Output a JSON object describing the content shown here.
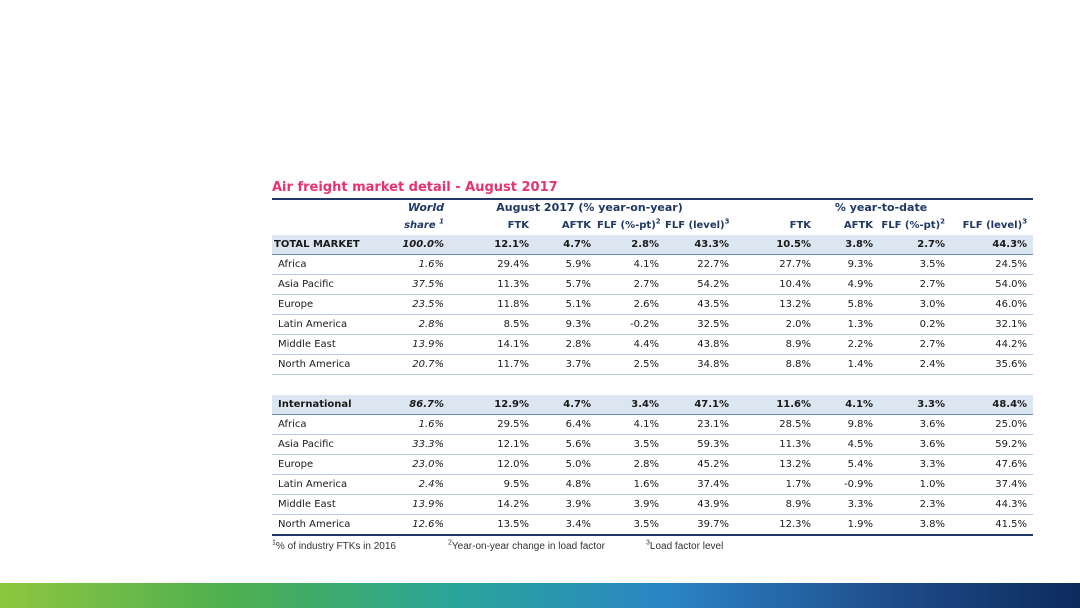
{
  "title": "Air freight market detail - August 2017",
  "header": {
    "world_share_line1": "World",
    "world_share_line2": "share",
    "world_share_sup": "1",
    "group1": "August 2017 (% year-on-year)",
    "group2": "% year-to-date",
    "cols": [
      "FTK",
      "AFTK",
      "FLF (%-pt)",
      "FLF (level)",
      "FTK",
      "AFTK",
      "FLF (%-pt)",
      "FLF (level)"
    ],
    "col_sups": [
      "",
      "",
      "2",
      "3",
      "",
      "",
      "2",
      "3"
    ]
  },
  "rows": [
    {
      "label": "TOTAL MARKET",
      "ws": "100.0%",
      "v": [
        "12.1%",
        "4.7%",
        "2.8%",
        "43.3%",
        "10.5%",
        "3.8%",
        "2.7%",
        "44.3%"
      ]
    },
    {
      "label": "Africa",
      "ws": "1.6%",
      "v": [
        "29.4%",
        "5.9%",
        "4.1%",
        "22.7%",
        "27.7%",
        "9.3%",
        "3.5%",
        "24.5%"
      ]
    },
    {
      "label": "Asia Pacific",
      "ws": "37.5%",
      "v": [
        "11.3%",
        "5.7%",
        "2.7%",
        "54.2%",
        "10.4%",
        "4.9%",
        "2.7%",
        "54.0%"
      ]
    },
    {
      "label": "Europe",
      "ws": "23.5%",
      "v": [
        "11.8%",
        "5.1%",
        "2.6%",
        "43.5%",
        "13.2%",
        "5.8%",
        "3.0%",
        "46.0%"
      ]
    },
    {
      "label": "Latin America",
      "ws": "2.8%",
      "v": [
        "8.5%",
        "9.3%",
        "-0.2%",
        "32.5%",
        "2.0%",
        "1.3%",
        "0.2%",
        "32.1%"
      ]
    },
    {
      "label": "Middle East",
      "ws": "13.9%",
      "v": [
        "14.1%",
        "2.8%",
        "4.4%",
        "43.8%",
        "8.9%",
        "2.2%",
        "2.7%",
        "44.2%"
      ]
    },
    {
      "label": "North America",
      "ws": "20.7%",
      "v": [
        "11.7%",
        "3.7%",
        "2.5%",
        "34.8%",
        "8.8%",
        "1.4%",
        "2.4%",
        "35.6%"
      ]
    },
    {
      "label": "International",
      "ws": "86.7%",
      "v": [
        "12.9%",
        "4.7%",
        "3.4%",
        "47.1%",
        "11.6%",
        "4.1%",
        "3.3%",
        "48.4%"
      ]
    },
    {
      "label": "Africa",
      "ws": "1.6%",
      "v": [
        "29.5%",
        "6.4%",
        "4.1%",
        "23.1%",
        "28.5%",
        "9.8%",
        "3.6%",
        "25.0%"
      ]
    },
    {
      "label": "Asia Pacific",
      "ws": "33.3%",
      "v": [
        "12.1%",
        "5.6%",
        "3.5%",
        "59.3%",
        "11.3%",
        "4.5%",
        "3.6%",
        "59.2%"
      ]
    },
    {
      "label": "Europe",
      "ws": "23.0%",
      "v": [
        "12.0%",
        "5.0%",
        "2.8%",
        "45.2%",
        "13.2%",
        "5.4%",
        "3.3%",
        "47.6%"
      ]
    },
    {
      "label": "Latin America",
      "ws": "2.4%",
      "v": [
        "9.5%",
        "4.8%",
        "1.6%",
        "37.4%",
        "1.7%",
        "-0.9%",
        "1.0%",
        "37.4%"
      ]
    },
    {
      "label": "Middle East",
      "ws": "13.9%",
      "v": [
        "14.2%",
        "3.9%",
        "3.9%",
        "43.9%",
        "8.9%",
        "3.3%",
        "2.3%",
        "44.3%"
      ]
    },
    {
      "label": "North America",
      "ws": "12.6%",
      "v": [
        "13.5%",
        "3.4%",
        "3.5%",
        "39.7%",
        "12.3%",
        "1.9%",
        "3.8%",
        "41.5%"
      ]
    }
  ],
  "footnotes": [
    {
      "sup": "1",
      "text": "% of industry FTKs in 2016"
    },
    {
      "sup": "2",
      "text": "Year-on-year change in load factor"
    },
    {
      "sup": "3",
      "text": "Load factor level"
    }
  ],
  "colors": {
    "title": "#e8336e",
    "header": "#1f3864",
    "total_row_bg": "#dce6f1"
  }
}
